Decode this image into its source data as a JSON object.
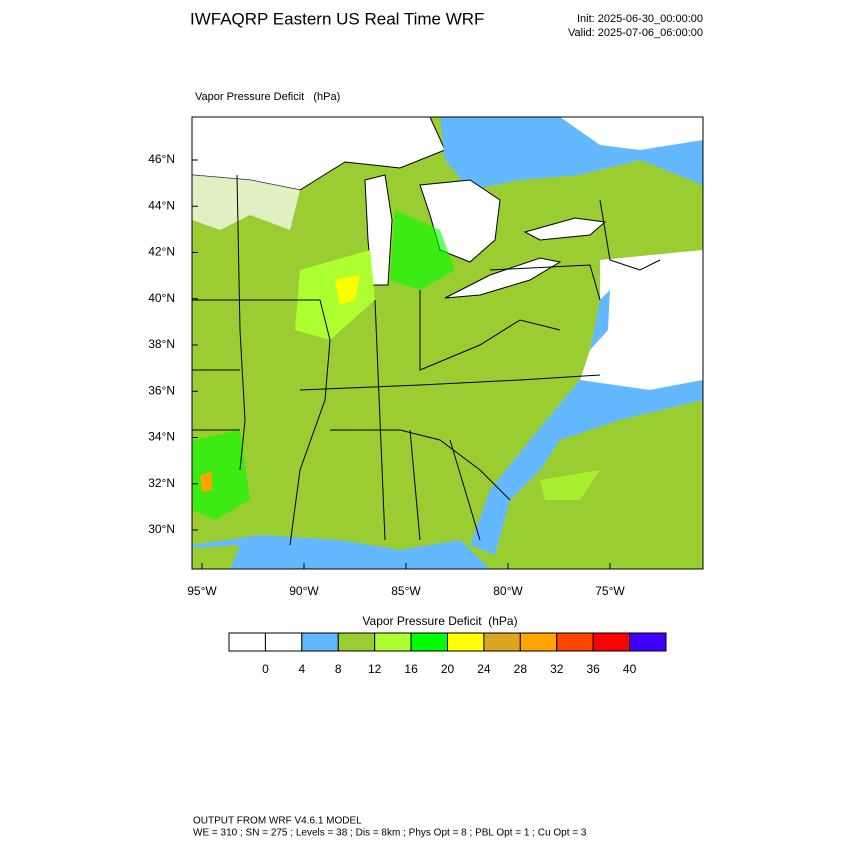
{
  "header": {
    "title": "IWFAQRP Eastern US Real Time WRF",
    "init": "Init: 2025-06-30_00:00:00",
    "valid": "Valid: 2025-07-06_06:00:00"
  },
  "map": {
    "label": "Vapor Pressure Deficit   (hPa)",
    "lat_labels": [
      "46°N",
      "44°N",
      "42°N",
      "40°N",
      "38°N",
      "36°N",
      "34°N",
      "32°N",
      "30°N"
    ],
    "lon_labels": [
      "95°W",
      "90°W",
      "85°W",
      "80°W",
      "75°W"
    ]
  },
  "colorbar": {
    "title": "Vapor Pressure Deficit  (hPa)",
    "colors": [
      "#ffffff",
      "#ffffff",
      "#63b8ff",
      "#9acd32",
      "#adff2f",
      "#00ff00",
      "#ffff00",
      "#daa520",
      "#ffa500",
      "#ff4500",
      "#ff0000",
      "#3f00ff"
    ],
    "ticks": [
      0,
      4,
      8,
      12,
      16,
      20,
      24,
      28,
      32,
      36,
      40
    ]
  },
  "footer": {
    "line1": "OUTPUT FROM WRF V4.6.1 MODEL",
    "line2": "WE = 310 ; SN = 275 ; Levels = 38 ; Dis = 8km ; Phys Opt = 8 ; PBL Opt = 1 ; Cu Opt = 3"
  }
}
